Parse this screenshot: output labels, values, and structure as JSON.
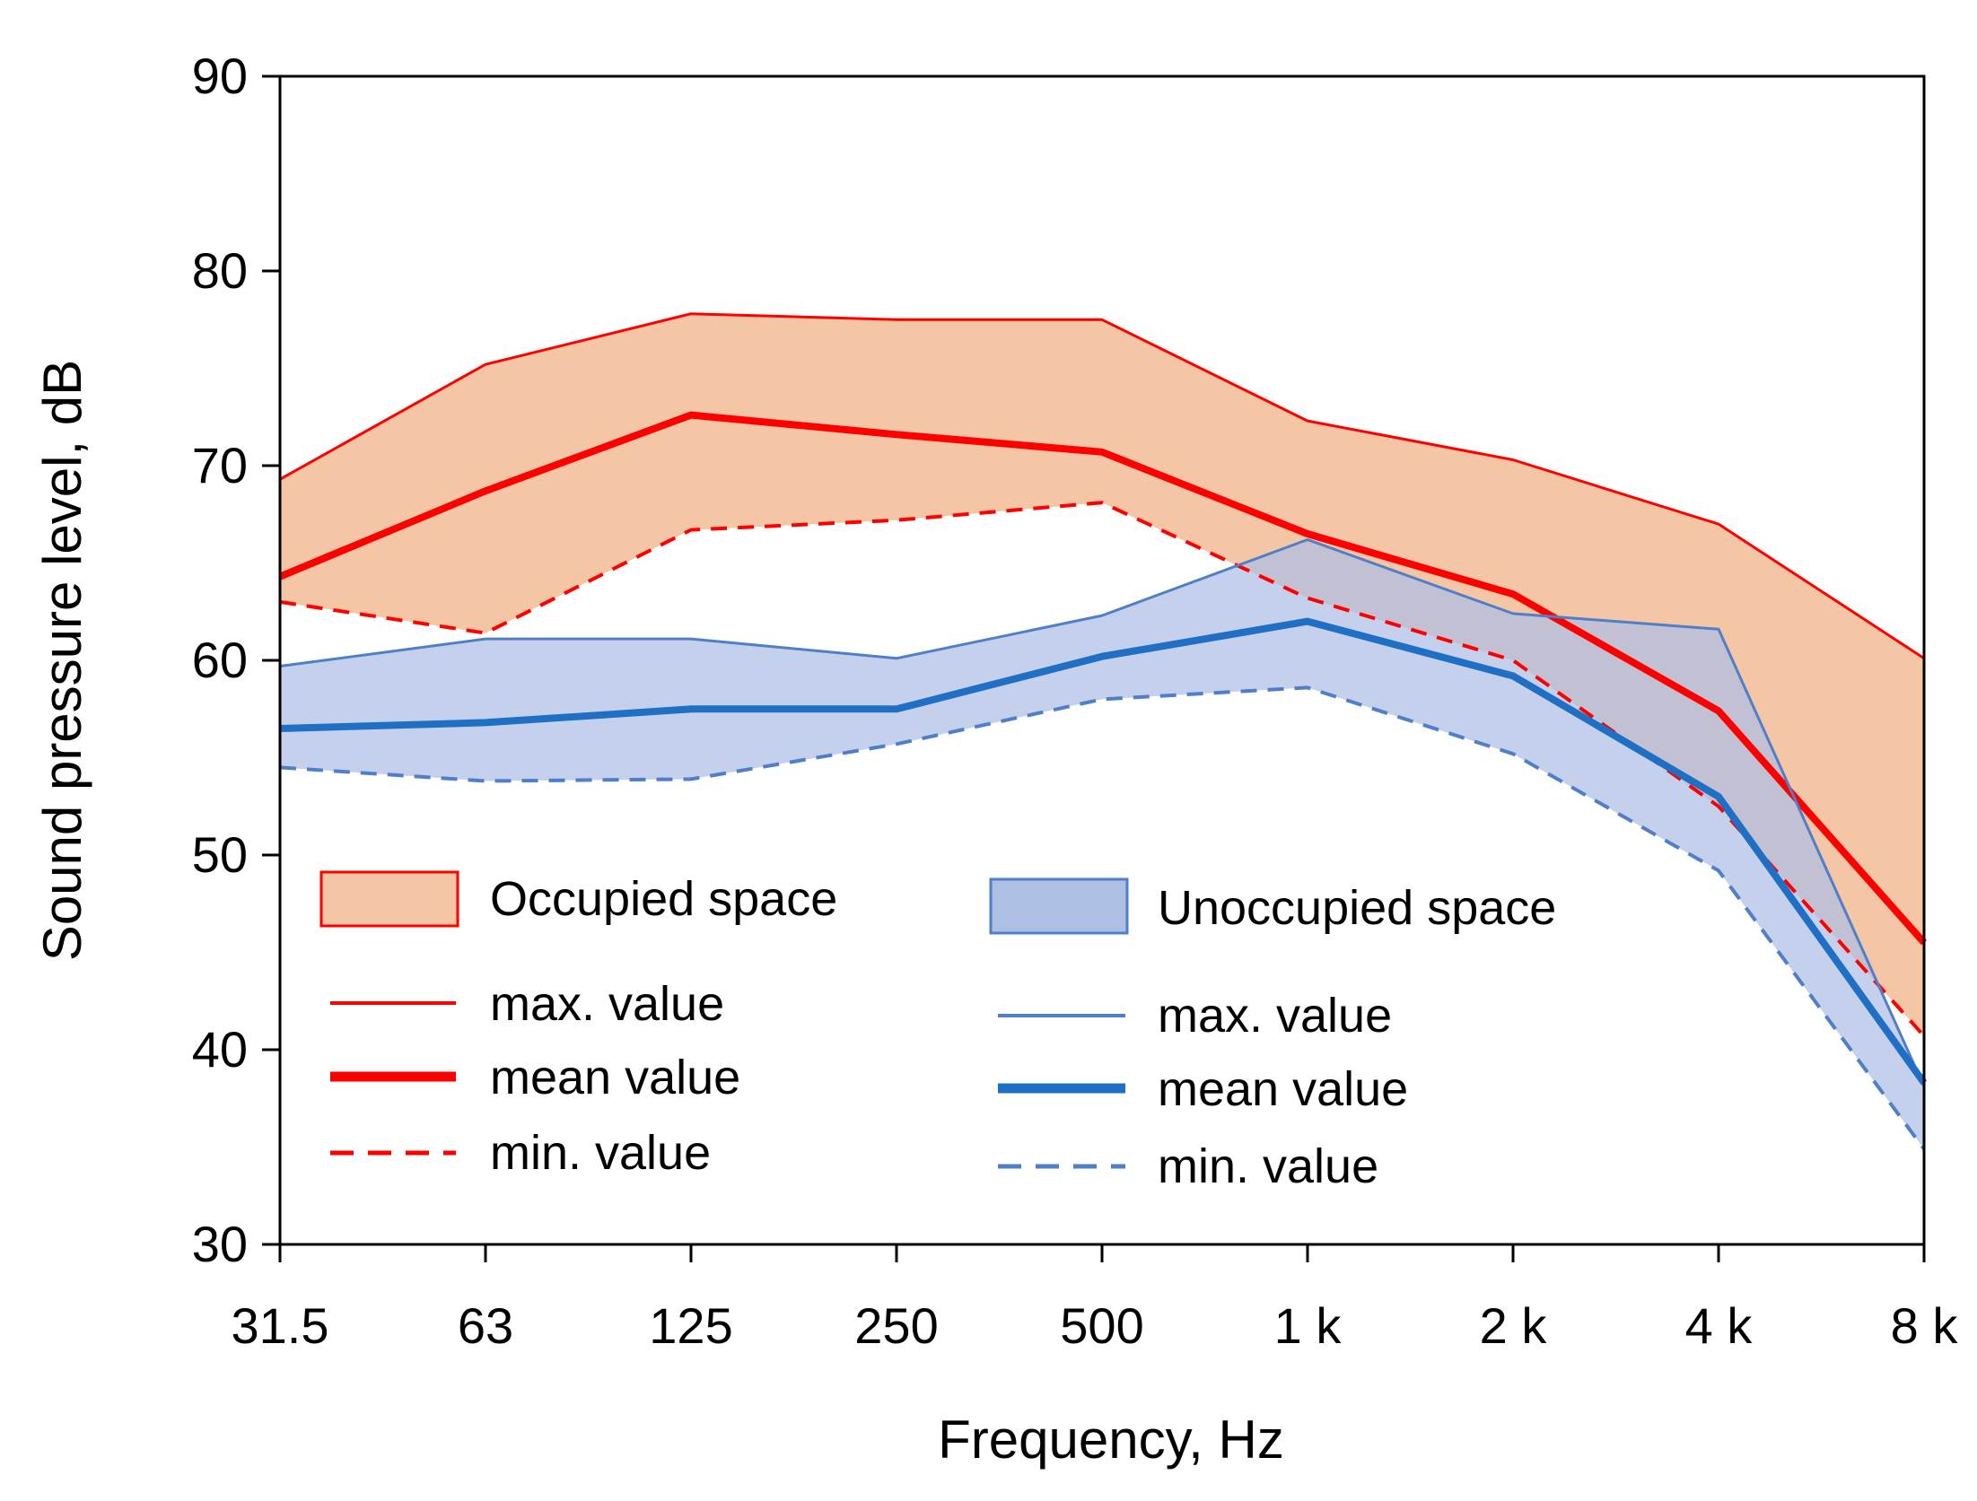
{
  "chart_data": {
    "type": "area",
    "xlabel": "Frequency, Hz",
    "ylabel": "Sound pressure level, dB",
    "categories": [
      "31.5",
      "63",
      "125",
      "250",
      "500",
      "1 k",
      "2 k",
      "4 k",
      "8 k"
    ],
    "yticks": [
      "30",
      "40",
      "50",
      "60",
      "70",
      "80",
      "90"
    ],
    "ylim": [
      30,
      90
    ],
    "grid": false,
    "groups": [
      {
        "name": "Occupied space",
        "fill_color": "#f5c6a6",
        "line_color": "#ff0000",
        "series": [
          {
            "name": "max. value",
            "style": "thin",
            "values": [
              69.3,
              75.2,
              77.8,
              77.5,
              77.5,
              72.3,
              70.3,
              67.0,
              60.1
            ]
          },
          {
            "name": "mean value",
            "style": "thick",
            "values": [
              64.3,
              68.7,
              72.6,
              71.6,
              70.7,
              66.5,
              63.4,
              57.4,
              45.5
            ]
          },
          {
            "name": "min. value",
            "style": "dashed",
            "values": [
              63.0,
              61.4,
              66.7,
              67.2,
              68.1,
              63.2,
              60.0,
              52.5,
              40.7
            ]
          }
        ]
      },
      {
        "name": "Unoccupied space",
        "fill_color": "#aebfe4",
        "line_color": "#4f7fc9",
        "mean_color": "#1f6fc5",
        "series": [
          {
            "name": "max. value",
            "style": "thin",
            "values": [
              59.7,
              61.1,
              61.1,
              60.1,
              62.3,
              66.2,
              62.4,
              61.6,
              38.1
            ]
          },
          {
            "name": "mean value",
            "style": "thick",
            "values": [
              56.5,
              56.8,
              57.5,
              57.5,
              60.2,
              62.0,
              59.2,
              53.0,
              38.3
            ]
          },
          {
            "name": "min. value",
            "style": "dashed",
            "values": [
              54.5,
              53.8,
              53.9,
              55.7,
              58.0,
              58.6,
              55.2,
              49.2,
              34.9
            ]
          }
        ]
      }
    ]
  }
}
